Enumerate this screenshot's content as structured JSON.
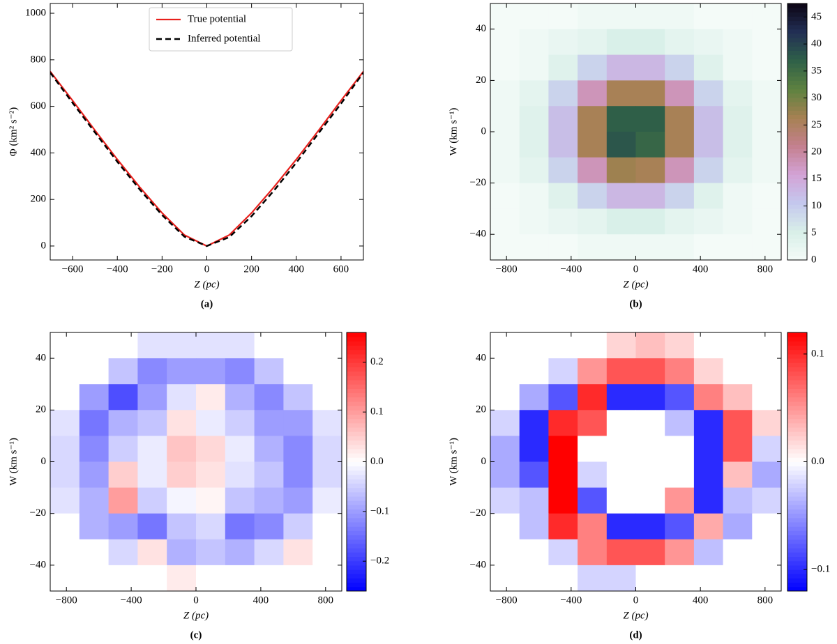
{
  "chart_data": [
    {
      "type": "line",
      "panel": "(a)",
      "xlabel": "Z (pc)",
      "ylabel": "Φ (km² s⁻²)",
      "x": [
        -700,
        -600,
        -500,
        -400,
        -300,
        -200,
        -100,
        0,
        100,
        200,
        300,
        400,
        500,
        600,
        700
      ],
      "series": [
        {
          "name": "True potential",
          "color": "#e8201c",
          "dash": false,
          "values": [
            750,
            625,
            497,
            372,
            253,
            142,
            47,
            0,
            47,
            142,
            253,
            372,
            497,
            625,
            750
          ]
        },
        {
          "name": "Inferred potential",
          "color": "#000000",
          "dash": true,
          "values": [
            745,
            615,
            488,
            362,
            243,
            133,
            40,
            0,
            38,
            128,
            238,
            358,
            485,
            612,
            745
          ]
        }
      ],
      "legend": "upper center",
      "xlim": [
        -700,
        700
      ],
      "ylim": [
        -60,
        1042
      ],
      "xticks": [
        {
          "value": -600,
          "label": "−600"
        },
        {
          "value": -400,
          "label": "−400"
        },
        {
          "value": -200,
          "label": "−200"
        },
        0,
        200,
        400,
        600
      ],
      "yticks": [
        0,
        200,
        400,
        600,
        800,
        1000
      ]
    },
    {
      "type": "heatmap",
      "panel": "(b)",
      "xlabel": "Z (pc)",
      "ylabel": "W (km s⁻¹)",
      "x": [
        -810,
        -630,
        -450,
        -270,
        -90,
        90,
        270,
        450,
        630,
        810
      ],
      "y": [
        45,
        35,
        25,
        15,
        5,
        -5,
        -15,
        -25,
        -35,
        -45
      ],
      "z": [
        [
          0,
          0,
          0,
          1,
          1,
          1,
          1,
          0,
          0,
          0
        ],
        [
          0,
          1,
          2,
          3,
          5,
          5,
          3,
          2,
          1,
          0
        ],
        [
          0,
          1,
          4,
          9,
          13,
          13,
          9,
          4,
          1,
          0
        ],
        [
          1,
          3,
          9,
          18,
          26,
          26,
          18,
          9,
          3,
          1
        ],
        [
          1,
          4,
          12,
          26,
          37,
          37,
          26,
          12,
          4,
          1
        ],
        [
          1,
          4,
          12,
          26,
          38,
          36,
          26,
          12,
          4,
          1
        ],
        [
          1,
          3,
          9,
          18,
          27,
          26,
          18,
          9,
          3,
          1
        ],
        [
          0,
          1,
          4,
          9,
          13,
          13,
          9,
          4,
          1,
          0
        ],
        [
          0,
          1,
          2,
          3,
          5,
          5,
          3,
          2,
          1,
          0
        ],
        [
          0,
          0,
          0,
          1,
          1,
          1,
          1,
          0,
          0,
          0
        ]
      ],
      "cmap": [
        "#f4fbf8",
        "#d8efe8",
        "#c4c8ee",
        "#d3a3d6",
        "#c4808f",
        "#a68152",
        "#5d8240",
        "#2f6048",
        "#222f55",
        "#0c0514"
      ],
      "clim": [
        0,
        47.5
      ],
      "xlim": [
        -900,
        900
      ],
      "ylim": [
        -50,
        50
      ],
      "xticks": [
        {
          "value": -800,
          "label": "−800"
        },
        {
          "value": -400,
          "label": "−400"
        },
        0,
        400,
        800
      ],
      "yticks": [
        {
          "value": -40,
          "label": "−40"
        },
        {
          "value": -20,
          "label": "−20"
        },
        0,
        20,
        40
      ],
      "cticks": [
        0,
        5,
        10,
        15,
        20,
        25,
        30,
        35,
        40,
        45
      ]
    },
    {
      "type": "heatmap",
      "panel": "(c)",
      "xlabel": "Z (pc)",
      "ylabel": "W (km s⁻¹)",
      "x": [
        -810,
        -630,
        -450,
        -270,
        -90,
        90,
        270,
        450,
        630,
        810
      ],
      "y": [
        45,
        35,
        25,
        15,
        5,
        -5,
        -15,
        -25,
        -35,
        -45
      ],
      "z": [
        [
          0,
          0,
          0,
          -0.03,
          -0.03,
          -0.03,
          -0.03,
          0,
          0,
          0
        ],
        [
          0,
          0,
          -0.06,
          -0.12,
          -0.1,
          -0.1,
          -0.12,
          -0.06,
          0,
          0
        ],
        [
          0,
          -0.1,
          -0.18,
          -0.1,
          -0.03,
          0.02,
          -0.08,
          -0.12,
          -0.06,
          0
        ],
        [
          -0.03,
          -0.14,
          -0.08,
          -0.06,
          0.03,
          -0.02,
          -0.05,
          -0.1,
          -0.1,
          -0.03
        ],
        [
          -0.04,
          -0.12,
          -0.05,
          -0.02,
          0.06,
          0.04,
          -0.02,
          -0.08,
          -0.12,
          -0.04
        ],
        [
          -0.04,
          -0.1,
          0.05,
          -0.02,
          0.05,
          0.03,
          -0.03,
          -0.06,
          -0.12,
          -0.04
        ],
        [
          -0.03,
          -0.08,
          0.1,
          -0.05,
          -0.01,
          0.01,
          -0.06,
          -0.08,
          -0.1,
          -0.02
        ],
        [
          0,
          -0.08,
          -0.1,
          -0.14,
          -0.06,
          -0.04,
          -0.14,
          -0.12,
          -0.05,
          0
        ],
        [
          0,
          0,
          -0.04,
          0.03,
          -0.08,
          -0.06,
          -0.08,
          -0.04,
          0.03,
          0
        ],
        [
          0,
          0,
          0,
          0,
          0.02,
          0,
          0,
          0,
          0,
          0
        ]
      ],
      "cmap": [
        "#0000ff",
        "#ffffff",
        "#ff0000"
      ],
      "clim": [
        -0.26,
        0.26
      ],
      "xlim": [
        -900,
        900
      ],
      "ylim": [
        -50,
        50
      ],
      "xticks": [
        {
          "value": -800,
          "label": "−800"
        },
        {
          "value": -400,
          "label": "−400"
        },
        0,
        400,
        800
      ],
      "yticks": [
        {
          "value": -40,
          "label": "−40"
        },
        {
          "value": -20,
          "label": "−20"
        },
        0,
        20,
        40
      ],
      "cticks": [
        {
          "value": -0.2,
          "label": "−0.2"
        },
        {
          "value": -0.1,
          "label": "−0.1"
        },
        {
          "value": 0,
          "label": "0.0"
        },
        0.1,
        0.2
      ]
    },
    {
      "type": "heatmap",
      "panel": "(d)",
      "xlabel": "Z (pc)",
      "ylabel": "W (km s⁻¹)",
      "x": [
        -810,
        -630,
        -450,
        -270,
        -90,
        90,
        270,
        450,
        630,
        810
      ],
      "y": [
        45,
        35,
        25,
        15,
        5,
        -5,
        -15,
        -25,
        -35,
        -45
      ],
      "z": [
        [
          0,
          0,
          0,
          0,
          0.02,
          0.03,
          0.02,
          0,
          0,
          0
        ],
        [
          0,
          0,
          -0.02,
          0.05,
          0.08,
          0.08,
          0.06,
          0.02,
          0,
          0
        ],
        [
          0,
          -0.04,
          -0.08,
          0.1,
          -0.1,
          -0.1,
          -0.08,
          0.06,
          0.03,
          0
        ],
        [
          -0.02,
          -0.1,
          0.1,
          0.08,
          0,
          0,
          -0.03,
          -0.1,
          0.08,
          0.02
        ],
        [
          -0.04,
          -0.1,
          0.12,
          0,
          0,
          0,
          0,
          -0.1,
          0.08,
          -0.02
        ],
        [
          -0.04,
          -0.08,
          0.12,
          -0.02,
          0,
          0,
          0,
          -0.1,
          0.03,
          -0.04
        ],
        [
          -0.02,
          -0.03,
          0.12,
          -0.08,
          0,
          0,
          0.05,
          -0.1,
          -0.03,
          -0.02
        ],
        [
          0,
          -0.03,
          0.1,
          0.06,
          -0.1,
          -0.1,
          -0.08,
          0.04,
          -0.04,
          0
        ],
        [
          0,
          0,
          -0.02,
          0.06,
          0.08,
          0.08,
          0.05,
          -0.03,
          0,
          0
        ],
        [
          0,
          0,
          0,
          -0.02,
          -0.02,
          0,
          0,
          0,
          0,
          0
        ]
      ],
      "cmap": [
        "#0000ff",
        "#ffffff",
        "#ff0000"
      ],
      "clim": [
        -0.12,
        0.12
      ],
      "xlim": [
        -900,
        900
      ],
      "ylim": [
        -50,
        50
      ],
      "xticks": [
        {
          "value": -800,
          "label": "−800"
        },
        {
          "value": -400,
          "label": "−400"
        },
        0,
        400,
        800
      ],
      "yticks": [
        {
          "value": -40,
          "label": "−40"
        },
        {
          "value": -20,
          "label": "−20"
        },
        0,
        20,
        40
      ],
      "cticks": [
        {
          "value": -0.1,
          "label": "−0.1"
        },
        {
          "value": 0,
          "label": "0.0"
        },
        0.1
      ]
    }
  ]
}
